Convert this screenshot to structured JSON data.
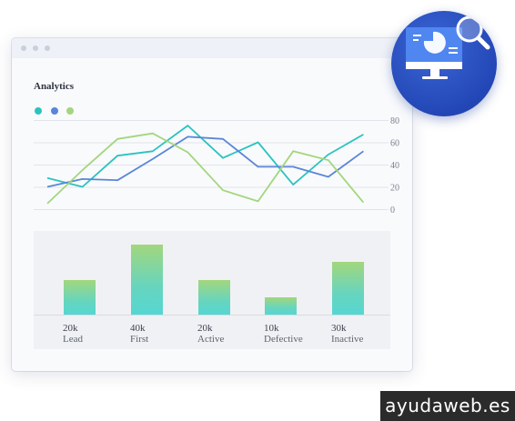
{
  "title": "Analytics",
  "colors": {
    "series_teal": "#2bc3be",
    "series_blue": "#5a86d8",
    "series_green": "#a3d67e",
    "badge_blue": "#2347b6"
  },
  "watermark": "ayudaweb.es",
  "badge_icon": "monitor-analytics-magnifier-icon",
  "chart_data": [
    {
      "type": "line",
      "x": [
        1,
        2,
        3,
        4,
        5,
        6,
        7,
        8,
        9,
        10,
        11
      ],
      "ylim": [
        0,
        80
      ],
      "yticks": [
        "80",
        "60",
        "40",
        "20",
        "0"
      ],
      "grid": true,
      "legend": "top-left",
      "series": [
        {
          "values": [
            28,
            20,
            48,
            52,
            75,
            46,
            60,
            22,
            49,
            67
          ],
          "x": [
            1,
            2,
            3,
            4,
            5,
            6,
            7,
            8,
            9,
            10
          ]
        },
        {
          "values": [
            20,
            27,
            26,
            45,
            65,
            63,
            38,
            38,
            29,
            52
          ],
          "x": [
            1,
            2,
            3,
            4,
            5,
            6,
            7,
            8,
            9,
            10
          ]
        },
        {
          "values": [
            5,
            35,
            63,
            68,
            51,
            17,
            7,
            52,
            44,
            6
          ],
          "x": [
            1,
            2,
            3,
            4,
            5,
            6,
            7,
            8,
            9,
            10
          ]
        }
      ]
    },
    {
      "type": "bar",
      "categories": [
        "Lead",
        "First",
        "Active",
        "Defective",
        "Inactive"
      ],
      "value_labels": [
        "20k",
        "40k",
        "20k",
        "10k",
        "30k"
      ],
      "values": [
        20,
        40,
        20,
        10,
        30
      ]
    }
  ]
}
